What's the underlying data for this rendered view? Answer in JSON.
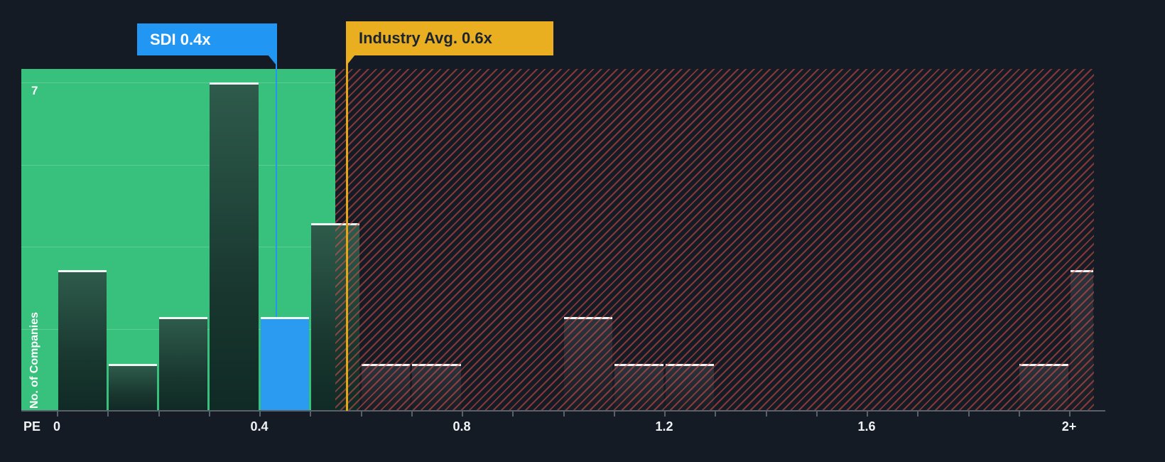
{
  "chart_data": {
    "type": "bar",
    "subtype": "histogram",
    "xlabel": "PE",
    "ylabel": "No. of Companies",
    "y_max_label": "7",
    "ylim": [
      0,
      7
    ],
    "xlim": [
      0,
      2.05
    ],
    "bin_width": 0.1,
    "grid": "faint-horizontal-on-green-zone",
    "legend": "none",
    "x_ticks": [
      {
        "label": "0",
        "value": 0
      },
      {
        "label": "0.4",
        "value": 0.4
      },
      {
        "label": "0.8",
        "value": 0.8
      },
      {
        "label": "1.2",
        "value": 1.2
      },
      {
        "label": "1.6",
        "value": 1.6
      },
      {
        "label": "2+",
        "value": 2.0
      }
    ],
    "bins": [
      {
        "x": 0.0,
        "count": 3
      },
      {
        "x": 0.1,
        "count": 1
      },
      {
        "x": 0.2,
        "count": 2
      },
      {
        "x": 0.3,
        "count": 7
      },
      {
        "x": 0.4,
        "count": 2,
        "highlight": true
      },
      {
        "x": 0.5,
        "count": 4
      },
      {
        "x": 0.6,
        "count": 1
      },
      {
        "x": 0.7,
        "count": 1
      },
      {
        "x": 1.0,
        "count": 2
      },
      {
        "x": 1.1,
        "count": 1
      },
      {
        "x": 1.2,
        "count": 1
      },
      {
        "x": 1.9,
        "count": 1
      },
      {
        "x": 2.0,
        "count": 3
      }
    ],
    "markers": {
      "sdi": {
        "label": "SDI 0.4x",
        "value": 0.4,
        "color": "#2196f3"
      },
      "industry": {
        "label": "Industry Avg. 0.6x",
        "value": 0.6,
        "color": "#e9af20"
      }
    },
    "zones": [
      {
        "style": "solid-green",
        "color": "#38c17c",
        "from": 0,
        "to": 0.55
      },
      {
        "style": "red-hatch",
        "color": "#e0524a",
        "from": 0.55,
        "to": 2.05
      }
    ],
    "colors": {
      "background": "#151b24",
      "bar_cap": "#f2f5f6",
      "highlight_bar": "#2b9bf2",
      "axis": "#596069",
      "text": "#f0f3f5"
    }
  }
}
